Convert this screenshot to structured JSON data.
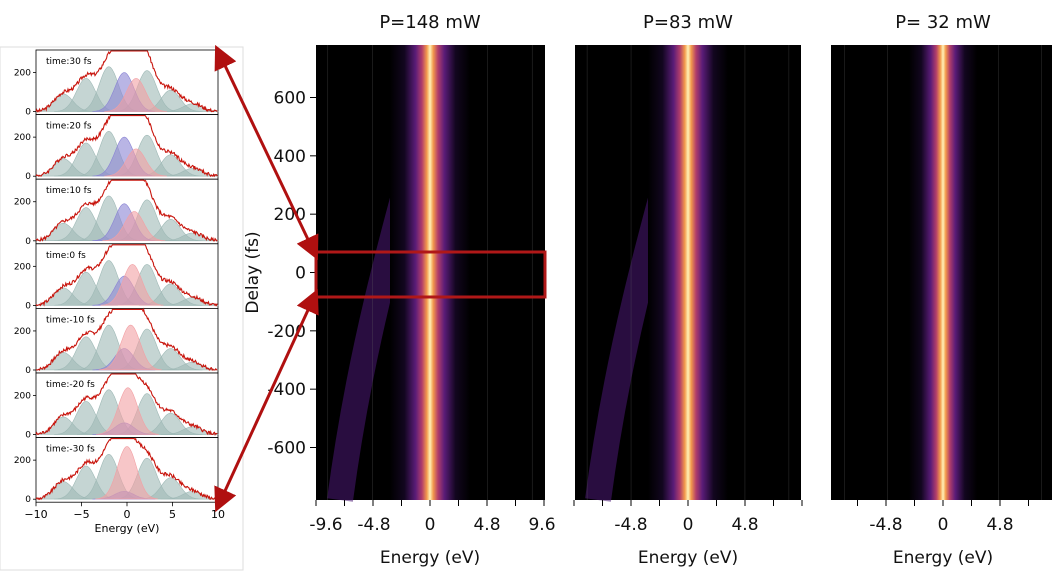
{
  "chart_data": [
    {
      "type": "line",
      "panel": "spectra-stack",
      "xlabel": "Energy (eV)",
      "xlim": [
        -10,
        10
      ],
      "x_ticks": [
        "−10",
        "−5",
        "0",
        "5",
        "10"
      ],
      "ylim": [
        0,
        300
      ],
      "y_ticks": [
        "0",
        "200"
      ],
      "gaussian_centers_ev": [
        -7,
        -4.5,
        -2,
        0,
        1,
        2.2,
        4.8,
        7.2
      ],
      "rows": [
        {
          "label": "time:30 fs",
          "delay_fs": 30,
          "blue_amp": 200,
          "pink_amp": 170,
          "pink_center": 1.0
        },
        {
          "label": "time:20 fs",
          "delay_fs": 20,
          "blue_amp": 200,
          "pink_amp": 140,
          "pink_center": 1.0
        },
        {
          "label": "time:10 fs",
          "delay_fs": 10,
          "blue_amp": 190,
          "pink_amp": 150,
          "pink_center": 0.8
        },
        {
          "label": "time:0 fs",
          "delay_fs": 0,
          "blue_amp": 150,
          "pink_amp": 210,
          "pink_center": 0.6
        },
        {
          "label": "time:-10 fs",
          "delay_fs": -10,
          "blue_amp": 110,
          "pink_amp": 230,
          "pink_center": 0.4
        },
        {
          "label": "time:-20 fs",
          "delay_fs": -20,
          "blue_amp": 60,
          "pink_amp": 240,
          "pink_center": 0.1
        },
        {
          "label": "time:-30 fs",
          "delay_fs": -30,
          "blue_amp": 40,
          "pink_amp": 270,
          "pink_center": 0.0
        }
      ]
    },
    {
      "type": "heatmap",
      "title": "P=148 mW",
      "xlabel": "Energy (eV)",
      "ylabel": "Delay (fs)",
      "x_ticks": [
        "-9.6",
        "-4.8",
        "0",
        "4.8",
        "9.6"
      ],
      "y_ticks": [
        600,
        400,
        200,
        0,
        -200,
        -400,
        -600
      ],
      "ylim": [
        -780,
        780
      ]
    },
    {
      "type": "heatmap",
      "title": "P=83 mW",
      "xlabel": "Energy (eV)",
      "x_ticks": [
        "-4.8",
        "0",
        "4.8"
      ]
    },
    {
      "type": "heatmap",
      "title": "P= 32 mW",
      "xlabel": "Energy (eV)",
      "x_ticks": [
        "-4.8",
        "0",
        "4.8"
      ]
    }
  ],
  "colors": {
    "fit_line": "#c8150d",
    "gaussian_grey": "#9fb9b6",
    "gaussian_blue": "#8a84d4",
    "gaussian_pink": "#f2a0a4",
    "highlight_box": "#b01818",
    "arrow": "#b01010"
  }
}
